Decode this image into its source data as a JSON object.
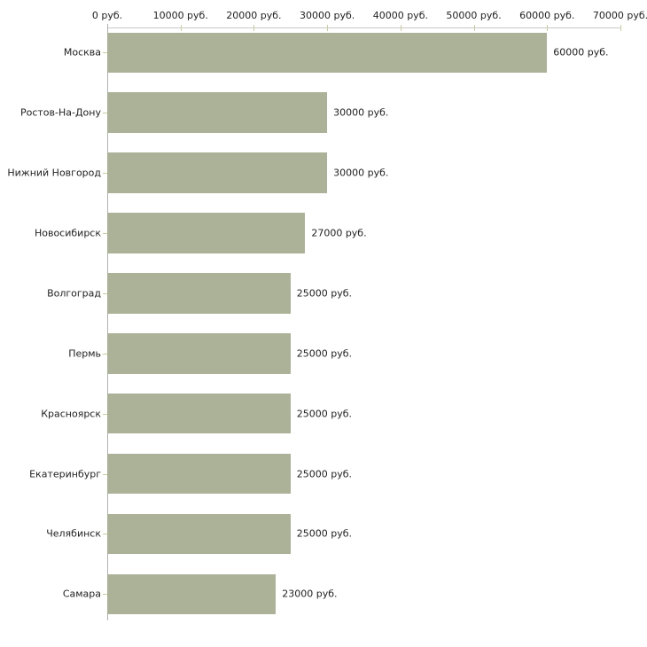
{
  "chart_data": {
    "type": "bar",
    "orientation": "horizontal",
    "title": "",
    "unit": "руб.",
    "categories": [
      "Москва",
      "Ростов-На-Дону",
      "Нижний Новгород",
      "Новосибирск",
      "Волгоград",
      "Пермь",
      "Красноярск",
      "Екатеринбург",
      "Челябинск",
      "Самара"
    ],
    "values": [
      60000,
      30000,
      30000,
      27000,
      25000,
      25000,
      25000,
      25000,
      25000,
      23000
    ],
    "value_labels": [
      "60000 руб.",
      "30000 руб.",
      "30000 руб.",
      "27000 руб.",
      "25000 руб.",
      "25000 руб.",
      "25000 руб.",
      "25000 руб.",
      "25000 руб.",
      "23000 руб."
    ],
    "xlim": [
      0,
      70000
    ],
    "x_ticks": [
      0,
      10000,
      20000,
      30000,
      40000,
      50000,
      60000,
      70000
    ],
    "x_tick_labels": [
      "0 руб.",
      "10000 руб.",
      "20000 руб.",
      "30000 руб.",
      "40000 руб.",
      "50000 руб.",
      "60000 руб.",
      "70000 руб."
    ],
    "xlabel": "",
    "ylabel": "",
    "grid": false,
    "legend": false,
    "colors": {
      "bar": "#acb298",
      "x_axis_line": "#c9c9c9",
      "y_axis_line": "#b0b0b0",
      "tick": "#cdcc9e",
      "text": "#222222",
      "background": "#ffffff"
    }
  }
}
